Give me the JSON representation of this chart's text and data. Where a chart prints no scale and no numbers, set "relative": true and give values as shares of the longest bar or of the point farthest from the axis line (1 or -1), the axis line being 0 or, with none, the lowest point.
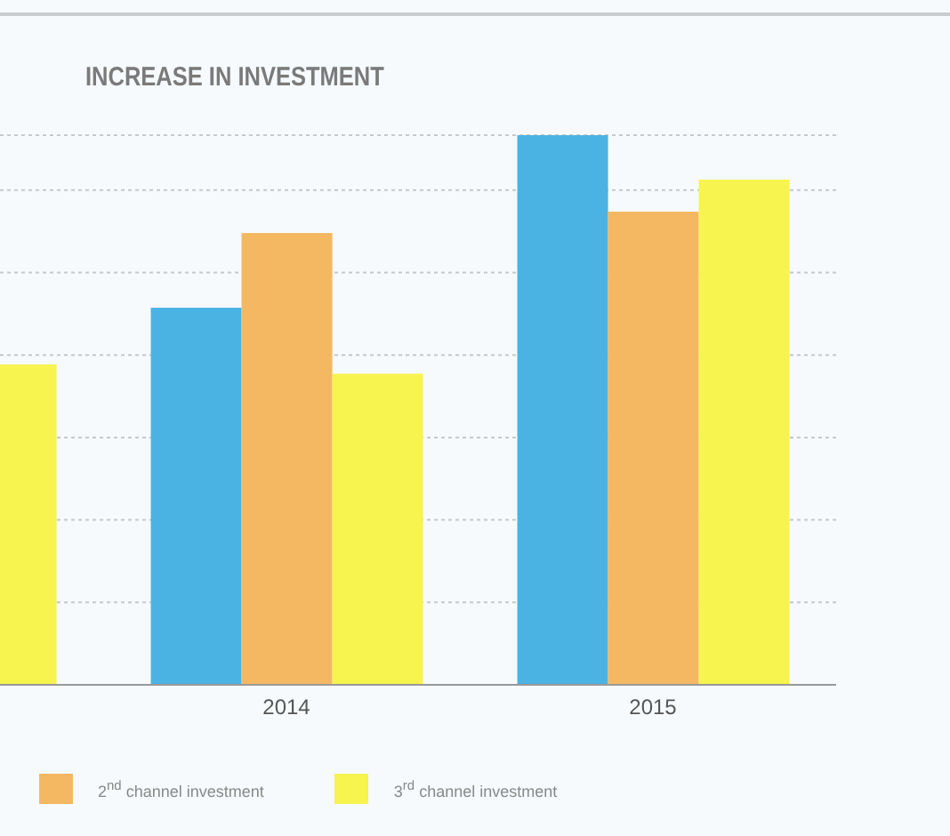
{
  "chart_data": {
    "type": "bar",
    "title": "INCREASE IN INVESTMENT",
    "categories": [
      null,
      "2014",
      "2015"
    ],
    "relative": true,
    "grid": "y",
    "legend": "bottom left",
    "series": [
      {
        "color": "#4ab3e3",
        "values": [
          null,
          0.686,
          1
        ]
      },
      {
        "name": "2$^{nd}$ channel investment",
        "color": "#f4b862",
        "values": [
          null,
          0.822,
          0.861
        ]
      },
      {
        "name": "3$^{rd}$ channel investment",
        "color": "#f7f34f",
        "values": [
          0.583,
          0.566,
          0.919
        ]
      }
    ]
  }
}
